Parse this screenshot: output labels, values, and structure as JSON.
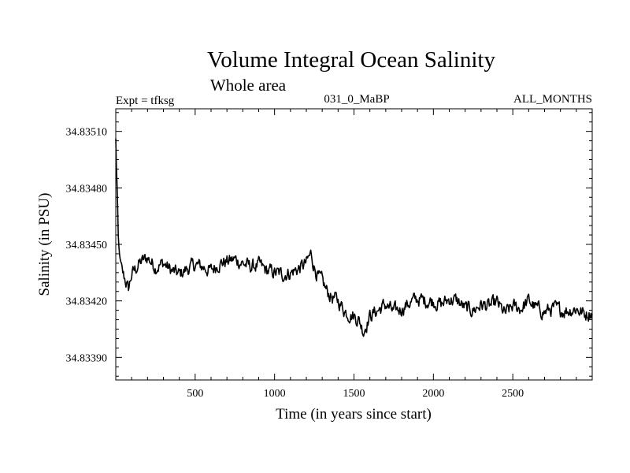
{
  "chart_data": {
    "type": "line",
    "title": "Volume Integral Ocean Salinity",
    "subtitle": "Whole area",
    "experiment": "Expt = tfksg",
    "period": "031_0_MaBP",
    "season": "ALL_MONTHS",
    "xlabel": "Time (in years since start)",
    "ylabel": "Salinity (in PSU)",
    "xlim": [
      0,
      3000
    ],
    "ylim": [
      34.83378,
      34.83522
    ],
    "xticks": [
      500,
      1000,
      1500,
      2000,
      2500
    ],
    "xtick_labels": [
      "500",
      "1000",
      "1500",
      "2000",
      "2500"
    ],
    "yticks": [
      34.8339,
      34.8342,
      34.8345,
      34.8348,
      34.8351
    ],
    "ytick_labels": [
      "34.83390",
      "34.83420",
      "34.83450",
      "34.83480",
      "34.83510"
    ],
    "grid": false,
    "series": [
      {
        "name": "salinity",
        "x": [
          0,
          5,
          10,
          15,
          20,
          30,
          40,
          60,
          80,
          100,
          150,
          200,
          250,
          300,
          350,
          400,
          450,
          500,
          550,
          600,
          650,
          700,
          750,
          800,
          850,
          900,
          950,
          1000,
          1050,
          1100,
          1150,
          1200,
          1230,
          1250,
          1280,
          1300,
          1330,
          1360,
          1400,
          1450,
          1500,
          1530,
          1560,
          1600,
          1650,
          1700,
          1750,
          1800,
          1850,
          1900,
          1950,
          2000,
          2050,
          2100,
          2150,
          2200,
          2250,
          2300,
          2350,
          2400,
          2450,
          2500,
          2550,
          2600,
          2650,
          2700,
          2750,
          2800,
          2850,
          2900,
          2950,
          3000
        ],
        "values": [
          34.83506,
          34.83488,
          34.83478,
          34.83455,
          34.83448,
          34.8344,
          34.83435,
          34.83431,
          34.83426,
          34.83434,
          34.8344,
          34.83443,
          34.83438,
          34.8344,
          34.83436,
          34.83434,
          34.83437,
          34.83439,
          34.83438,
          34.83436,
          34.8344,
          34.83441,
          34.83442,
          34.8344,
          34.83438,
          34.83439,
          34.83436,
          34.83435,
          34.83434,
          34.83435,
          34.83437,
          34.8344,
          34.83445,
          34.83438,
          34.83432,
          34.8343,
          34.83425,
          34.83422,
          34.8342,
          34.83414,
          34.83412,
          34.8341,
          34.83404,
          34.83412,
          34.83415,
          34.83418,
          34.83414,
          34.83416,
          34.83419,
          34.83421,
          34.8342,
          34.8342,
          34.83418,
          34.83421,
          34.8342,
          34.83416,
          34.83415,
          34.83418,
          34.83417,
          34.83419,
          34.83413,
          34.83417,
          34.83416,
          34.8342,
          34.83416,
          34.83414,
          34.83416,
          34.83415,
          34.83415,
          34.83416,
          34.83413,
          34.83414
        ]
      }
    ]
  }
}
